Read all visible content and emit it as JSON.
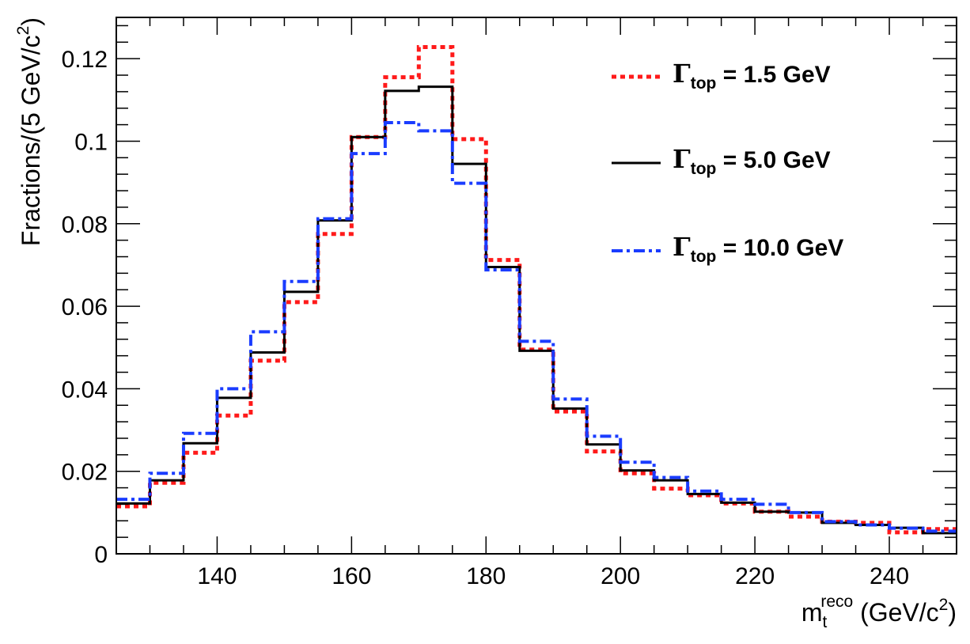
{
  "chart_data": {
    "type": "line",
    "style": "step-histogram",
    "xlabel": {
      "main": "m",
      "sub": "t",
      "sup": "reco",
      "rest": " (GeV/c",
      "rest_sup": "2",
      "rest_end": ")"
    },
    "ylabel": {
      "main": "Fractions/(5 GeV/c",
      "sup": "2",
      "end": ")"
    },
    "xlim": [
      125,
      250
    ],
    "ylim": [
      0,
      0.13
    ],
    "bin_width": 5,
    "x_ticks": [
      140,
      160,
      180,
      200,
      220,
      240
    ],
    "x_tick_labels": [
      "140",
      "160",
      "180",
      "200",
      "220",
      "240"
    ],
    "y_ticks": [
      0,
      0.02,
      0.04,
      0.06,
      0.08,
      0.1,
      0.12
    ],
    "y_tick_labels": [
      "0",
      "0.02",
      "0.04",
      "0.06",
      "0.08",
      "0.1",
      "0.12"
    ],
    "legend_position": "top-right",
    "bin_edges": [
      125,
      130,
      135,
      140,
      145,
      150,
      155,
      160,
      165,
      170,
      175,
      180,
      185,
      190,
      195,
      200,
      205,
      210,
      215,
      220,
      225,
      230,
      235,
      240,
      245,
      250
    ],
    "series": [
      {
        "name": "Γtop = 1.5 GeV",
        "legend": {
          "symbol": "Γ",
          "sub": "top",
          "text": " = 1.5 GeV"
        },
        "color": "#ff1a1a",
        "dash": "dotted",
        "values": [
          0.0115,
          0.0172,
          0.0245,
          0.0335,
          0.0468,
          0.061,
          0.0775,
          0.101,
          0.1155,
          0.1228,
          0.1005,
          0.0712,
          0.0495,
          0.0345,
          0.0248,
          0.0195,
          0.0158,
          0.0142,
          0.0122,
          0.0102,
          0.009,
          0.0078,
          0.0075,
          0.0052,
          0.006
        ]
      },
      {
        "name": "Γtop = 5.0 GeV",
        "legend": {
          "symbol": "Γ",
          "sub": "top",
          "text": " = 5.0 GeV"
        },
        "color": "#000000",
        "dash": "solid",
        "values": [
          0.0122,
          0.0178,
          0.0268,
          0.0378,
          0.0488,
          0.0635,
          0.0808,
          0.101,
          0.1122,
          0.1132,
          0.0945,
          0.0695,
          0.0492,
          0.0352,
          0.0265,
          0.0202,
          0.0178,
          0.0145,
          0.0124,
          0.0102,
          0.01,
          0.0075,
          0.007,
          0.0063,
          0.005
        ]
      },
      {
        "name": "Γtop = 10.0 GeV",
        "legend": {
          "symbol": "Γ",
          "sub": "top",
          "text": " = 10.0 GeV"
        },
        "color": "#1a3cff",
        "dash": "dashdot",
        "values": [
          0.0132,
          0.0195,
          0.0292,
          0.04,
          0.0538,
          0.066,
          0.0812,
          0.097,
          0.1045,
          0.1025,
          0.0898,
          0.0688,
          0.0515,
          0.0375,
          0.0285,
          0.0222,
          0.0185,
          0.0152,
          0.0132,
          0.012,
          0.01,
          0.0078,
          0.007,
          0.0062,
          0.0055
        ]
      }
    ]
  }
}
